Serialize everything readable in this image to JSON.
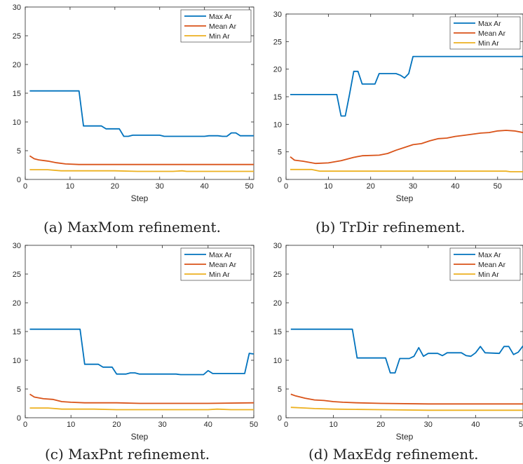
{
  "colors": {
    "max": "#0072BD",
    "mean": "#D95319",
    "min": "#EDB120"
  },
  "captions": [
    "(a) MaxMom refinement.",
    "(b) TrDir refinement.",
    "(c) MaxPnt refinement.",
    "(d) MaxEdg refinement."
  ],
  "chart_data": [
    {
      "type": "line",
      "xlabel": "Step",
      "ylabel": "",
      "xlim": [
        0,
        51
      ],
      "ylim": [
        0,
        30
      ],
      "xticks": [
        0,
        10,
        20,
        30,
        40,
        50
      ],
      "yticks": [
        0,
        5,
        10,
        15,
        20,
        25,
        30
      ],
      "grid": false,
      "legend": "top-right",
      "series": [
        {
          "name": "Max Ar",
          "color_key": "max",
          "points": [
            [
              1,
              15.4
            ],
            [
              12,
              15.4
            ],
            [
              13,
              9.3
            ],
            [
              17,
              9.3
            ],
            [
              18,
              8.8
            ],
            [
              21,
              8.8
            ],
            [
              22,
              7.5
            ],
            [
              23,
              7.5
            ],
            [
              24,
              7.7
            ],
            [
              30,
              7.7
            ],
            [
              31,
              7.5
            ],
            [
              40,
              7.5
            ],
            [
              41,
              7.6
            ],
            [
              43,
              7.6
            ],
            [
              44,
              7.5
            ],
            [
              45,
              7.5
            ],
            [
              46,
              8.1
            ],
            [
              47,
              8.1
            ],
            [
              48,
              7.6
            ],
            [
              51,
              7.6
            ]
          ]
        },
        {
          "name": "Mean Ar",
          "color_key": "mean",
          "points": [
            [
              1,
              4.1
            ],
            [
              2,
              3.6
            ],
            [
              3,
              3.4
            ],
            [
              5,
              3.2
            ],
            [
              7,
              2.9
            ],
            [
              9,
              2.7
            ],
            [
              12,
              2.6
            ],
            [
              15,
              2.6
            ],
            [
              20,
              2.6
            ],
            [
              30,
              2.6
            ],
            [
              40,
              2.6
            ],
            [
              51,
              2.6
            ]
          ]
        },
        {
          "name": "Min Ar",
          "color_key": "min",
          "points": [
            [
              1,
              1.7
            ],
            [
              5,
              1.7
            ],
            [
              8,
              1.5
            ],
            [
              20,
              1.5
            ],
            [
              25,
              1.4
            ],
            [
              33,
              1.4
            ],
            [
              35,
              1.5
            ],
            [
              36,
              1.4
            ],
            [
              51,
              1.4
            ]
          ]
        }
      ]
    },
    {
      "type": "line",
      "xlabel": "Step",
      "ylabel": "",
      "xlim": [
        0,
        56
      ],
      "ylim": [
        0,
        30
      ],
      "xticks": [
        0,
        10,
        20,
        30,
        40,
        50
      ],
      "yticks": [
        0,
        5,
        10,
        15,
        20,
        25,
        30
      ],
      "grid": false,
      "legend": "top-right",
      "series": [
        {
          "name": "Max Ar",
          "color_key": "max",
          "points": [
            [
              1,
              15.4
            ],
            [
              12,
              15.4
            ],
            [
              13,
              11.5
            ],
            [
              14,
              11.5
            ],
            [
              15,
              15.4
            ],
            [
              16,
              19.6
            ],
            [
              17,
              19.6
            ],
            [
              18,
              17.3
            ],
            [
              21,
              17.3
            ],
            [
              22,
              19.2
            ],
            [
              26,
              19.2
            ],
            [
              27,
              18.9
            ],
            [
              28,
              18.4
            ],
            [
              29,
              19.2
            ],
            [
              30,
              22.3
            ],
            [
              56,
              22.3
            ]
          ]
        },
        {
          "name": "Mean Ar",
          "color_key": "mean",
          "points": [
            [
              1,
              4.1
            ],
            [
              2,
              3.5
            ],
            [
              4,
              3.3
            ],
            [
              7,
              2.9
            ],
            [
              10,
              3.0
            ],
            [
              13,
              3.4
            ],
            [
              16,
              4.0
            ],
            [
              18,
              4.3
            ],
            [
              22,
              4.4
            ],
            [
              24,
              4.7
            ],
            [
              26,
              5.3
            ],
            [
              28,
              5.8
            ],
            [
              30,
              6.3
            ],
            [
              32,
              6.5
            ],
            [
              34,
              7.0
            ],
            [
              36,
              7.4
            ],
            [
              38,
              7.5
            ],
            [
              40,
              7.8
            ],
            [
              42,
              8.0
            ],
            [
              44,
              8.2
            ],
            [
              46,
              8.4
            ],
            [
              48,
              8.5
            ],
            [
              50,
              8.8
            ],
            [
              52,
              8.9
            ],
            [
              54,
              8.8
            ],
            [
              56,
              8.5
            ]
          ]
        },
        {
          "name": "Min Ar",
          "color_key": "min",
          "points": [
            [
              1,
              1.8
            ],
            [
              6,
              1.8
            ],
            [
              8,
              1.5
            ],
            [
              30,
              1.5
            ],
            [
              52,
              1.5
            ],
            [
              53,
              1.4
            ],
            [
              56,
              1.4
            ]
          ]
        }
      ]
    },
    {
      "type": "line",
      "xlabel": "Step",
      "ylabel": "",
      "xlim": [
        0,
        50
      ],
      "ylim": [
        0,
        30
      ],
      "xticks": [
        0,
        10,
        20,
        30,
        40,
        50
      ],
      "yticks": [
        0,
        5,
        10,
        15,
        20,
        25,
        30
      ],
      "grid": false,
      "legend": "top-right",
      "series": [
        {
          "name": "Max Ar",
          "color_key": "max",
          "points": [
            [
              1,
              15.4
            ],
            [
              12,
              15.4
            ],
            [
              13,
              9.3
            ],
            [
              16,
              9.3
            ],
            [
              17,
              8.8
            ],
            [
              19,
              8.8
            ],
            [
              20,
              7.6
            ],
            [
              22,
              7.6
            ],
            [
              23,
              7.8
            ],
            [
              24,
              7.8
            ],
            [
              25,
              7.6
            ],
            [
              33,
              7.6
            ],
            [
              34,
              7.5
            ],
            [
              39,
              7.5
            ],
            [
              40,
              8.2
            ],
            [
              41,
              7.7
            ],
            [
              48,
              7.7
            ],
            [
              49,
              11.2
            ],
            [
              50,
              11.1
            ]
          ]
        },
        {
          "name": "Mean Ar",
          "color_key": "mean",
          "points": [
            [
              1,
              4.1
            ],
            [
              2,
              3.6
            ],
            [
              4,
              3.3
            ],
            [
              6,
              3.2
            ],
            [
              8,
              2.8
            ],
            [
              10,
              2.7
            ],
            [
              13,
              2.6
            ],
            [
              20,
              2.6
            ],
            [
              25,
              2.5
            ],
            [
              30,
              2.5
            ],
            [
              40,
              2.5
            ],
            [
              50,
              2.6
            ]
          ]
        },
        {
          "name": "Min Ar",
          "color_key": "min",
          "points": [
            [
              1,
              1.7
            ],
            [
              5,
              1.7
            ],
            [
              8,
              1.5
            ],
            [
              15,
              1.5
            ],
            [
              20,
              1.4
            ],
            [
              40,
              1.4
            ],
            [
              42,
              1.5
            ],
            [
              45,
              1.4
            ],
            [
              50,
              1.4
            ]
          ]
        }
      ]
    },
    {
      "type": "line",
      "xlabel": "Step",
      "ylabel": "",
      "xlim": [
        0,
        50
      ],
      "ylim": [
        0,
        30
      ],
      "xticks": [
        0,
        10,
        20,
        30,
        40,
        50
      ],
      "yticks": [
        0,
        5,
        10,
        15,
        20,
        25,
        30
      ],
      "grid": false,
      "legend": "top-right",
      "series": [
        {
          "name": "Max Ar",
          "color_key": "max",
          "points": [
            [
              1,
              15.4
            ],
            [
              14,
              15.4
            ],
            [
              15,
              10.4
            ],
            [
              21,
              10.4
            ],
            [
              22,
              7.8
            ],
            [
              23,
              7.8
            ],
            [
              24,
              10.3
            ],
            [
              26,
              10.3
            ],
            [
              27,
              10.7
            ],
            [
              28,
              12.2
            ],
            [
              29,
              10.7
            ],
            [
              30,
              11.2
            ],
            [
              32,
              11.2
            ],
            [
              33,
              10.8
            ],
            [
              34,
              11.3
            ],
            [
              37,
              11.3
            ],
            [
              38,
              10.8
            ],
            [
              39,
              10.7
            ],
            [
              40,
              11.3
            ],
            [
              41,
              12.4
            ],
            [
              42,
              11.3
            ],
            [
              45,
              11.2
            ],
            [
              46,
              12.4
            ],
            [
              47,
              12.4
            ],
            [
              48,
              11.0
            ],
            [
              49,
              11.4
            ],
            [
              50,
              12.5
            ]
          ]
        },
        {
          "name": "Mean Ar",
          "color_key": "mean",
          "points": [
            [
              1,
              4.1
            ],
            [
              2,
              3.8
            ],
            [
              4,
              3.4
            ],
            [
              6,
              3.1
            ],
            [
              8,
              3.0
            ],
            [
              10,
              2.8
            ],
            [
              12,
              2.7
            ],
            [
              15,
              2.6
            ],
            [
              20,
              2.5
            ],
            [
              30,
              2.4
            ],
            [
              40,
              2.4
            ],
            [
              50,
              2.4
            ]
          ]
        },
        {
          "name": "Min Ar",
          "color_key": "min",
          "points": [
            [
              1,
              1.8
            ],
            [
              4,
              1.7
            ],
            [
              6,
              1.6
            ],
            [
              10,
              1.5
            ],
            [
              20,
              1.4
            ],
            [
              30,
              1.3
            ],
            [
              40,
              1.3
            ],
            [
              50,
              1.3
            ]
          ]
        }
      ]
    }
  ]
}
